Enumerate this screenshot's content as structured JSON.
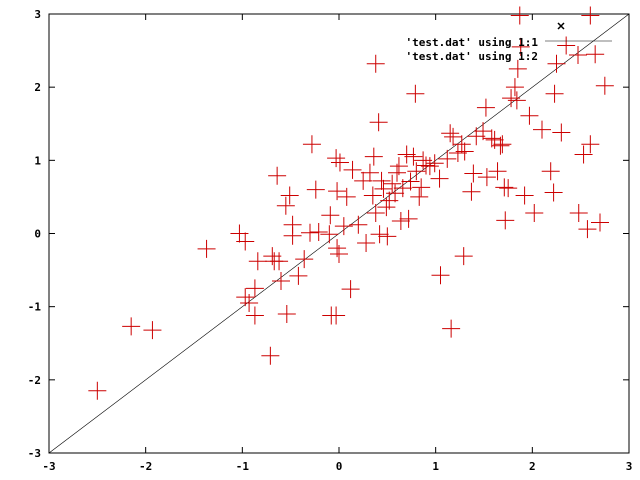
{
  "chart_data": {
    "type": "scatter",
    "xlim": [
      -3,
      3
    ],
    "ylim": [
      -3,
      3
    ],
    "grid": false,
    "legend_placement": "top-right",
    "x_ticks": [
      "-3",
      "-2",
      "-1",
      "0",
      "1",
      "2",
      "3"
    ],
    "y_ticks": [
      "-3",
      "-2",
      "-1",
      "0",
      "1",
      "2",
      "3"
    ],
    "series": [
      {
        "name": "'test.dat' using 1:1",
        "kind": "line",
        "marker": "x",
        "color": "#000000",
        "points": [
          [
            -3,
            -3
          ],
          [
            3,
            3
          ]
        ]
      },
      {
        "name": "'test.dat' using 1:2",
        "kind": "points",
        "marker": "+",
        "color": "#cc0000",
        "points": [
          [
            -2.5,
            -2.15
          ],
          [
            -2.15,
            -1.27
          ],
          [
            -1.93,
            -1.32
          ],
          [
            -1.37,
            -0.21
          ],
          [
            -1.03,
            0.0
          ],
          [
            -0.97,
            -0.11
          ],
          [
            -0.97,
            -0.87
          ],
          [
            -0.93,
            -0.95
          ],
          [
            -0.87,
            -0.75
          ],
          [
            -0.87,
            -1.12
          ],
          [
            -0.84,
            -0.38
          ],
          [
            -0.71,
            -1.67
          ],
          [
            -0.69,
            -0.31
          ],
          [
            -0.67,
            -0.38
          ],
          [
            -0.64,
            0.79
          ],
          [
            -0.62,
            -0.38
          ],
          [
            -0.6,
            -0.65
          ],
          [
            -0.55,
            0.38
          ],
          [
            -0.54,
            -1.1
          ],
          [
            -0.51,
            0.52
          ],
          [
            -0.48,
            0.12
          ],
          [
            -0.48,
            -0.03
          ],
          [
            -0.42,
            -0.58
          ],
          [
            -0.36,
            -0.35
          ],
          [
            -0.3,
            0.01
          ],
          [
            -0.28,
            1.22
          ],
          [
            -0.24,
            0.6
          ],
          [
            -0.21,
            0.02
          ],
          [
            -0.1,
            -0.01
          ],
          [
            -0.09,
            0.25
          ],
          [
            -0.08,
            -1.12
          ],
          [
            -0.03,
            -1.12
          ],
          [
            -0.03,
            1.03
          ],
          [
            -0.02,
            0.58
          ],
          [
            -0.02,
            -0.2
          ],
          [
            0.0,
            -0.28
          ],
          [
            0.01,
            0.97
          ],
          [
            0.05,
            0.1
          ],
          [
            0.08,
            0.5
          ],
          [
            0.12,
            -0.76
          ],
          [
            0.14,
            0.87
          ],
          [
            0.2,
            0.12
          ],
          [
            0.25,
            0.72
          ],
          [
            0.28,
            -0.13
          ],
          [
            0.32,
            0.83
          ],
          [
            0.35,
            0.52
          ],
          [
            0.36,
            1.05
          ],
          [
            0.38,
            0.28
          ],
          [
            0.38,
            2.32
          ],
          [
            0.41,
            1.52
          ],
          [
            0.42,
            -0.01
          ],
          [
            0.44,
            0.72
          ],
          [
            0.46,
            0.61
          ],
          [
            0.49,
            0.36
          ],
          [
            0.5,
            -0.04
          ],
          [
            0.52,
            0.45
          ],
          [
            0.55,
            0.68
          ],
          [
            0.58,
            0.55
          ],
          [
            0.6,
            0.83
          ],
          [
            0.62,
            0.92
          ],
          [
            0.64,
            0.17
          ],
          [
            0.66,
            0.62
          ],
          [
            0.7,
            1.08
          ],
          [
            0.72,
            0.2
          ],
          [
            0.74,
            0.71
          ],
          [
            0.77,
            1.05
          ],
          [
            0.79,
            1.91
          ],
          [
            0.8,
            0.85
          ],
          [
            0.83,
            0.5
          ],
          [
            0.85,
            0.63
          ],
          [
            0.87,
            1.0
          ],
          [
            0.9,
            0.93
          ],
          [
            0.94,
            0.92
          ],
          [
            0.99,
            0.96
          ],
          [
            1.04,
            0.75
          ],
          [
            1.05,
            -0.57
          ],
          [
            1.12,
            1.02
          ],
          [
            1.15,
            1.37
          ],
          [
            1.16,
            -1.3
          ],
          [
            1.18,
            1.32
          ],
          [
            1.23,
            1.1
          ],
          [
            1.27,
            1.22
          ],
          [
            1.29,
            -0.31
          ],
          [
            1.3,
            1.12
          ],
          [
            1.37,
            0.57
          ],
          [
            1.39,
            0.82
          ],
          [
            1.42,
            1.33
          ],
          [
            1.49,
            1.4
          ],
          [
            1.52,
            1.72
          ],
          [
            1.53,
            0.77
          ],
          [
            1.58,
            1.3
          ],
          [
            1.61,
            1.28
          ],
          [
            1.64,
            0.85
          ],
          [
            1.67,
            1.2
          ],
          [
            1.69,
            1.22
          ],
          [
            1.71,
            0.63
          ],
          [
            1.72,
            0.18
          ],
          [
            1.75,
            0.62
          ],
          [
            1.78,
            1.85
          ],
          [
            1.82,
            2.0
          ],
          [
            1.84,
            1.82
          ],
          [
            1.85,
            2.25
          ],
          [
            1.88,
            2.55
          ],
          [
            1.87,
            2.98
          ],
          [
            1.92,
            0.52
          ],
          [
            1.97,
            1.61
          ],
          [
            2.02,
            0.28
          ],
          [
            2.1,
            1.42
          ],
          [
            2.19,
            0.85
          ],
          [
            2.22,
            0.56
          ],
          [
            2.23,
            1.91
          ],
          [
            2.25,
            2.32
          ],
          [
            2.3,
            1.38
          ],
          [
            2.35,
            2.57
          ],
          [
            2.48,
            0.28
          ],
          [
            2.53,
            1.08
          ],
          [
            2.57,
            0.06
          ],
          [
            2.6,
            1.22
          ],
          [
            2.6,
            2.98
          ],
          [
            2.65,
            2.45
          ],
          [
            2.7,
            0.15
          ],
          [
            2.75,
            2.02
          ]
        ]
      }
    ]
  }
}
